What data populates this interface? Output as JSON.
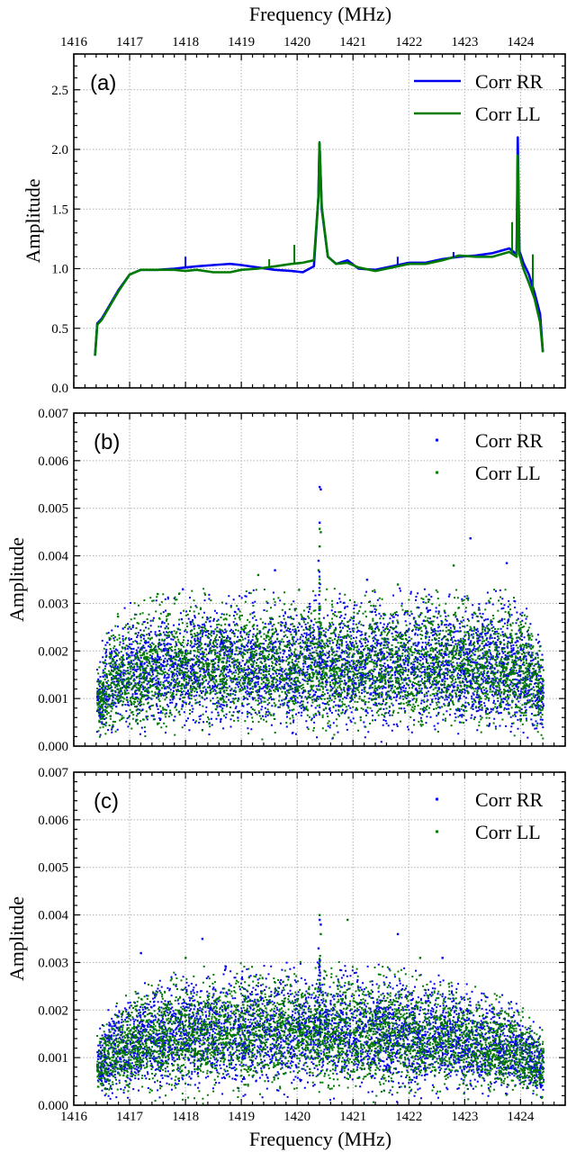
{
  "figure": {
    "top_axis_title": "Frequency (MHz)",
    "bottom_axis_title": "Frequency (MHz)",
    "x_ticks": [
      "1416",
      "1417",
      "1418",
      "1419",
      "1420",
      "1421",
      "1422",
      "1423",
      "1424"
    ]
  },
  "colors": {
    "rr": "#0000ee",
    "ll": "#007a00"
  },
  "chart_data": [
    {
      "type": "line",
      "panel_label": "(a)",
      "xlabel": "Frequency (MHz)",
      "ylabel": "Amplitude",
      "xlim": [
        1416,
        1424.8
      ],
      "ylim": [
        0,
        2.8
      ],
      "y_ticks": [
        "0.0",
        "0.5",
        "1.0",
        "1.5",
        "2.0",
        "2.5"
      ],
      "grid": true,
      "legend": "top-right",
      "series": [
        {
          "name": "Corr RR",
          "x": [
            1416.38,
            1416.42,
            1416.5,
            1416.6,
            1416.8,
            1417.0,
            1417.2,
            1417.5,
            1417.8,
            1418.0,
            1418.2,
            1418.5,
            1418.8,
            1419.0,
            1419.3,
            1419.6,
            1419.9,
            1420.1,
            1420.3,
            1420.38,
            1420.4,
            1420.44,
            1420.55,
            1420.7,
            1420.9,
            1421.1,
            1421.4,
            1421.7,
            1422.0,
            1422.3,
            1422.6,
            1422.9,
            1423.2,
            1423.5,
            1423.8,
            1423.93,
            1423.95,
            1423.98,
            1424.05,
            1424.15,
            1424.25,
            1424.35,
            1424.4
          ],
          "y": [
            0.27,
            0.54,
            0.58,
            0.66,
            0.82,
            0.95,
            0.99,
            0.99,
            1.0,
            1.01,
            1.02,
            1.03,
            1.04,
            1.03,
            1.01,
            0.99,
            0.98,
            0.97,
            1.02,
            1.6,
            2.05,
            1.5,
            1.1,
            1.04,
            1.07,
            1.0,
            0.99,
            1.02,
            1.05,
            1.05,
            1.08,
            1.1,
            1.11,
            1.13,
            1.17,
            1.12,
            2.1,
            1.15,
            1.05,
            0.95,
            0.8,
            0.62,
            0.3
          ]
        },
        {
          "name": "Corr LL",
          "x": [
            1416.38,
            1416.42,
            1416.5,
            1416.6,
            1416.8,
            1417.0,
            1417.2,
            1417.5,
            1417.8,
            1418.0,
            1418.2,
            1418.5,
            1418.8,
            1419.0,
            1419.3,
            1419.6,
            1419.9,
            1420.1,
            1420.3,
            1420.38,
            1420.4,
            1420.44,
            1420.55,
            1420.7,
            1420.9,
            1421.1,
            1421.4,
            1421.7,
            1422.0,
            1422.3,
            1422.6,
            1422.9,
            1423.2,
            1423.5,
            1423.8,
            1423.93,
            1423.95,
            1423.98,
            1424.05,
            1424.15,
            1424.25,
            1424.35,
            1424.4
          ],
          "y": [
            0.27,
            0.53,
            0.57,
            0.65,
            0.81,
            0.95,
            0.99,
            0.99,
            0.99,
            0.98,
            0.99,
            0.97,
            0.97,
            0.99,
            1.0,
            1.02,
            1.04,
            1.05,
            1.07,
            1.6,
            2.06,
            1.52,
            1.1,
            1.04,
            1.05,
            1.01,
            0.98,
            1.01,
            1.04,
            1.04,
            1.07,
            1.11,
            1.1,
            1.1,
            1.14,
            1.1,
            1.95,
            1.12,
            1.0,
            0.88,
            0.75,
            0.55,
            0.3
          ]
        }
      ],
      "spikes": [
        {
          "series": "Corr RR",
          "x": 1418.0,
          "y": 1.1
        },
        {
          "series": "Corr LL",
          "x": 1419.95,
          "y": 1.2
        },
        {
          "series": "Corr LL",
          "x": 1419.5,
          "y": 1.08
        },
        {
          "series": "Corr RR",
          "x": 1421.8,
          "y": 1.1
        },
        {
          "series": "Corr RR",
          "x": 1422.8,
          "y": 1.14
        },
        {
          "series": "Corr LL",
          "x": 1423.85,
          "y": 1.39
        },
        {
          "series": "Corr LL",
          "x": 1424.22,
          "y": 1.12
        }
      ]
    },
    {
      "type": "scatter",
      "panel_label": "(b)",
      "xlabel": "Frequency (MHz)",
      "ylabel": "Amplitude",
      "xlim": [
        1416,
        1424.8
      ],
      "ylim": [
        0,
        0.007
      ],
      "y_ticks": [
        "0.000",
        "0.001",
        "0.002",
        "0.003",
        "0.004",
        "0.005",
        "0.006",
        "0.007"
      ],
      "grid": true,
      "legend": "top-right",
      "x_range": [
        1416.4,
        1424.4
      ],
      "envelope": {
        "x": [
          1416.4,
          1416.6,
          1417.0,
          1417.5,
          1418.0,
          1419.0,
          1420.0,
          1421.0,
          1422.0,
          1423.0,
          1423.8,
          1424.2,
          1424.4
        ],
        "y": [
          0.0013,
          0.0018,
          0.0021,
          0.0022,
          0.0023,
          0.0023,
          0.0023,
          0.0023,
          0.0023,
          0.0023,
          0.0023,
          0.0019,
          0.0014
        ]
      },
      "series": [
        {
          "name": "Corr RR",
          "outliers_x": [
            1420.4,
            1420.42,
            1420.38,
            1423.1,
            1419.6,
            1423.75,
            1417.95,
            1421.25,
            1420.4
          ],
          "outliers_y": [
            0.00545,
            0.0054,
            0.0039,
            0.00437,
            0.0037,
            0.00385,
            0.0033,
            0.0035,
            0.0047
          ]
        },
        {
          "name": "Corr LL",
          "outliers_x": [
            1420.4,
            1420.42,
            1420.38,
            1422.8,
            1419.3,
            1421.8,
            1417.5,
            1420.4
          ],
          "outliers_y": [
            0.00457,
            0.0045,
            0.0037,
            0.0038,
            0.0036,
            0.0034,
            0.0032,
            0.0042
          ]
        }
      ]
    },
    {
      "type": "scatter",
      "panel_label": "(c)",
      "xlabel": "Frequency (MHz)",
      "ylabel": "Amplitude",
      "xlim": [
        1416,
        1424.8
      ],
      "ylim": [
        0,
        0.007
      ],
      "y_ticks": [
        "0.000",
        "0.001",
        "0.002",
        "0.003",
        "0.004",
        "0.005",
        "0.006",
        "0.007"
      ],
      "grid": true,
      "legend": "top-right",
      "x_range": [
        1416.4,
        1424.4
      ],
      "envelope": {
        "x": [
          1416.4,
          1416.6,
          1417.0,
          1417.5,
          1418.0,
          1419.0,
          1420.0,
          1420.5,
          1421.0,
          1422.0,
          1423.0,
          1423.8,
          1424.2,
          1424.4
        ],
        "y": [
          0.0011,
          0.0014,
          0.0017,
          0.0019,
          0.002,
          0.0021,
          0.0021,
          0.0021,
          0.0021,
          0.002,
          0.0018,
          0.0016,
          0.0013,
          0.0011
        ]
      },
      "series": [
        {
          "name": "Corr RR",
          "outliers_x": [
            1420.4,
            1420.42,
            1420.38,
            1417.2,
            1418.3,
            1421.8,
            1422.6
          ],
          "outliers_y": [
            0.0039,
            0.0038,
            0.0033,
            0.0032,
            0.0035,
            0.0036,
            0.0031
          ]
        },
        {
          "name": "Corr LL",
          "outliers_x": [
            1420.4,
            1420.42,
            1420.9,
            1418.0,
            1422.2
          ],
          "outliers_y": [
            0.004,
            0.0036,
            0.0039,
            0.0031,
            0.0031
          ]
        }
      ]
    }
  ]
}
